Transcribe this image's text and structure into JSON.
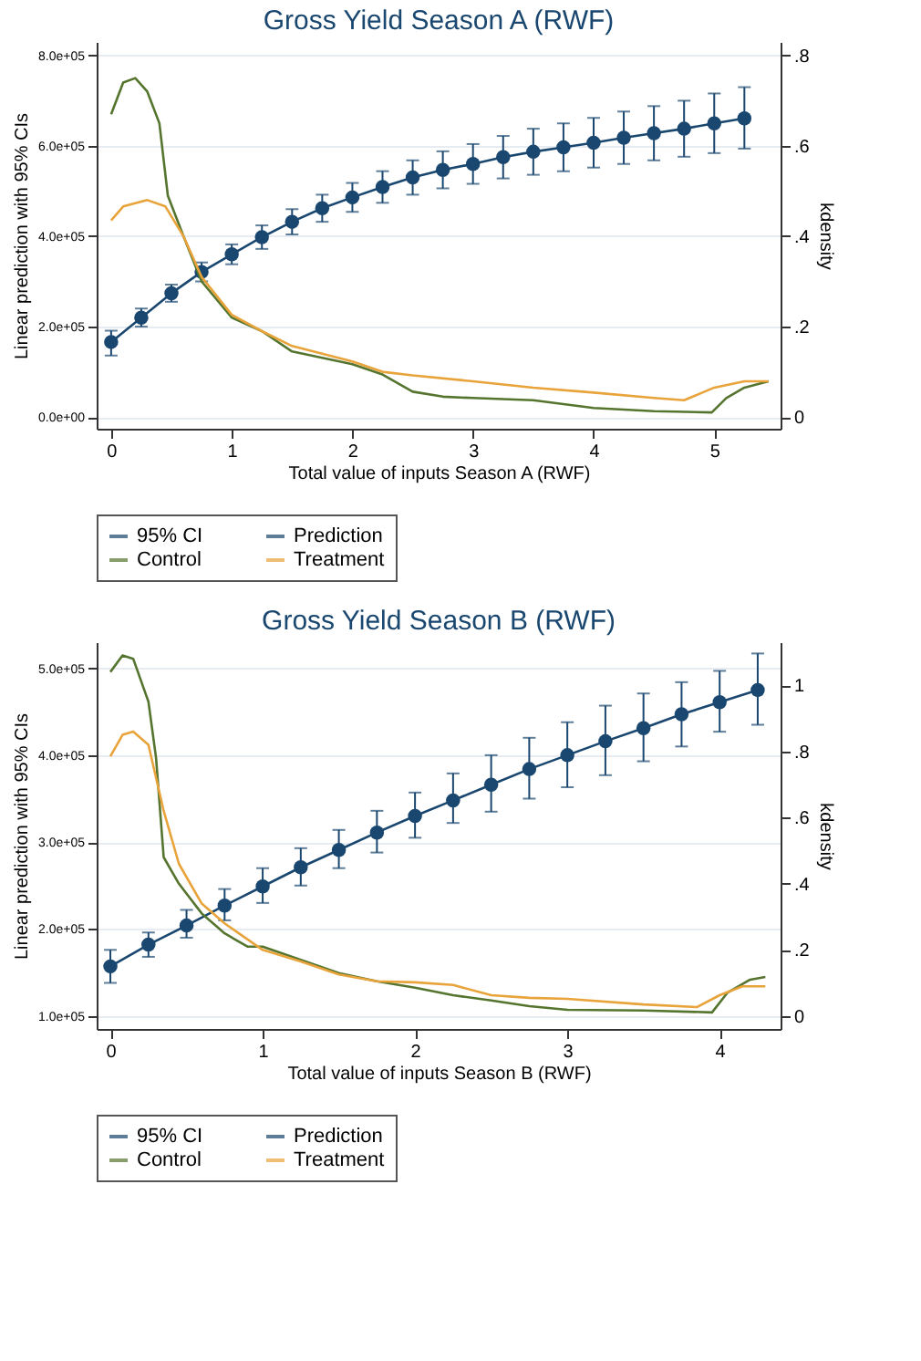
{
  "chart_data": [
    {
      "type": "line",
      "title": "Gross Yield Season A (RWF)",
      "xlabel": "Total value of inputs Season A (RWF)",
      "ylabel": "Linear prediction with 95% CIs",
      "y2label": "kdensity",
      "annotations": [
        "95% CI"
      ],
      "grid": "y",
      "legend": "bottom",
      "xlim": [
        -0.12,
        5.55
      ],
      "xticks": [
        0,
        1,
        2,
        3,
        4,
        5
      ],
      "ylim": [
        -26000,
        830000
      ],
      "yticks": [
        {
          "value": 0,
          "label": "0.0e+00"
        },
        {
          "value": 200000,
          "label": "2.0e+05"
        },
        {
          "value": 400000,
          "label": "4.0e+05"
        },
        {
          "value": 600000,
          "label": "6.0e+05"
        },
        {
          "value": 800000,
          "label": "8.0e+05"
        }
      ],
      "y2lim": [
        -0.026,
        0.83
      ],
      "y2ticks": [
        {
          "value": 0,
          "label": "0"
        },
        {
          "value": 0.2,
          "label": ".2"
        },
        {
          "value": 0.4,
          "label": ".4"
        },
        {
          "value": 0.6,
          "label": ".6"
        },
        {
          "value": 0.8,
          "label": ".8"
        }
      ],
      "series": [
        {
          "name": "Prediction",
          "color": "#1a476f",
          "marker": "circle",
          "line_style": "solid",
          "x": [
            0,
            0.25,
            0.5,
            0.75,
            1,
            1.25,
            1.5,
            1.75,
            2,
            2.25,
            2.5,
            2.75,
            3,
            3.25,
            3.5,
            3.75,
            4,
            4.25,
            4.5,
            4.75,
            5,
            5.25
          ],
          "values": [
            166000,
            220000,
            274000,
            321000,
            360000,
            398000,
            432000,
            462000,
            486000,
            509000,
            530000,
            547000,
            560000,
            575000,
            587000,
            597000,
            607000,
            618000,
            628000,
            638000,
            650000,
            661000
          ],
          "errors": [
            [
              136000,
              191000
            ],
            [
              200000,
              240000
            ],
            [
              255000,
              293000
            ],
            [
              300000,
              342000
            ],
            [
              338000,
              382000
            ],
            [
              372000,
              424000
            ],
            [
              404000,
              460000
            ],
            [
              432000,
              492000
            ],
            [
              454000,
              518000
            ],
            [
              474000,
              544000
            ],
            [
              492000,
              568000
            ],
            [
              506000,
              588000
            ],
            [
              516000,
              604000
            ],
            [
              528000,
              622000
            ],
            [
              536000,
              638000
            ],
            [
              544000,
              650000
            ],
            [
              552000,
              662000
            ],
            [
              560000,
              676000
            ],
            [
              568000,
              688000
            ],
            [
              576000,
              700000
            ],
            [
              584000,
              716000
            ],
            [
              594000,
              730000
            ]
          ]
        },
        {
          "name": "Control",
          "color": "#55752f",
          "axis": "y2",
          "line_style": "solid",
          "x": [
            0,
            0.1,
            0.2,
            0.3,
            0.4,
            0.47,
            0.6,
            0.75,
            1,
            1.25,
            1.5,
            2,
            2.25,
            2.5,
            2.75,
            3,
            3.5,
            4,
            4.5,
            4.98,
            5.1,
            5.25,
            5.45
          ],
          "values": [
            0.67,
            0.74,
            0.75,
            0.72,
            0.65,
            0.49,
            0.4,
            0.3,
            0.22,
            0.19,
            0.145,
            0.117,
            0.094,
            0.056,
            0.045,
            0.042,
            0.037,
            0.02,
            0.013,
            0.01,
            0.042,
            0.065,
            0.079
          ]
        },
        {
          "name": "Treatment",
          "color": "#e8a33a",
          "axis": "y2",
          "line_style": "solid",
          "x": [
            0,
            0.1,
            0.3,
            0.45,
            0.6,
            0.75,
            1,
            1.25,
            1.5,
            1.75,
            2,
            2.25,
            2.5,
            3,
            3.5,
            4,
            4.5,
            4.75,
            5,
            5.25,
            5.45
          ],
          "values": [
            0.435,
            0.466,
            0.48,
            0.466,
            0.4,
            0.31,
            0.226,
            0.19,
            0.157,
            0.14,
            0.123,
            0.1,
            0.092,
            0.079,
            0.065,
            0.054,
            0.042,
            0.037,
            0.065,
            0.079,
            0.079
          ]
        }
      ]
    },
    {
      "type": "line",
      "title": "Gross Yield Season B (RWF)",
      "xlabel": "Total value of inputs Season B (RWF)",
      "ylabel": "Linear prediction with 95% CIs",
      "y2label": "kdensity",
      "annotations": [
        "95% CI"
      ],
      "grid": "y",
      "legend": "bottom",
      "xlim": [
        -0.09,
        4.4
      ],
      "xticks": [
        0,
        1,
        2,
        3,
        4
      ],
      "ylim": [
        85000,
        530000
      ],
      "yticks": [
        {
          "value": 100000,
          "label": "1.0e+05"
        },
        {
          "value": 200000,
          "label": "2.0e+05"
        },
        {
          "value": 300000,
          "label": "3.0e+05"
        },
        {
          "value": 400000,
          "label": "4.0e+05"
        },
        {
          "value": 500000,
          "label": "5.0e+05"
        }
      ],
      "y2lim": [
        -0.039,
        1.13
      ],
      "y2ticks": [
        {
          "value": 0,
          "label": "0"
        },
        {
          "value": 0.2,
          "label": ".2"
        },
        {
          "value": 0.4,
          "label": ".4"
        },
        {
          "value": 0.6,
          "label": ".6"
        },
        {
          "value": 0.8,
          "label": ".8"
        },
        {
          "value": 1,
          "label": "1"
        }
      ],
      "series": [
        {
          "name": "Prediction",
          "color": "#1a476f",
          "marker": "circle",
          "line_style": "solid",
          "x": [
            0,
            0.25,
            0.5,
            0.75,
            1,
            1.25,
            1.5,
            1.75,
            2,
            2.25,
            2.5,
            2.75,
            3,
            3.25,
            3.5,
            3.75,
            4,
            4.25
          ],
          "values": [
            157000,
            182000,
            204000,
            227000,
            249000,
            271000,
            291000,
            311000,
            330000,
            348000,
            366000,
            384000,
            400000,
            416000,
            431000,
            447000,
            461000,
            475000
          ],
          "errors": [
            [
              138000,
              176000
            ],
            [
              168000,
              196000
            ],
            [
              190000,
              222000
            ],
            [
              210000,
              246000
            ],
            [
              230000,
              270000
            ],
            [
              250000,
              293000
            ],
            [
              270000,
              314000
            ],
            [
              288000,
              336000
            ],
            [
              305000,
              357000
            ],
            [
              322000,
              379000
            ],
            [
              335000,
              400000
            ],
            [
              350000,
              420000
            ],
            [
              363000,
              438000
            ],
            [
              377000,
              457000
            ],
            [
              393000,
              471000
            ],
            [
              410000,
              484000
            ],
            [
              427000,
              497000
            ],
            [
              435000,
              517000
            ]
          ]
        },
        {
          "name": "Control",
          "color": "#55752f",
          "axis": "y2",
          "line_style": "solid",
          "x": [
            0,
            0.08,
            0.15,
            0.25,
            0.3,
            0.35,
            0.45,
            0.6,
            0.75,
            0.9,
            1,
            1.25,
            1.5,
            1.75,
            2,
            2.25,
            2.5,
            2.75,
            3,
            3.5,
            3.95,
            4.05,
            4.2,
            4.3
          ],
          "values": [
            1.04,
            1.09,
            1.08,
            0.95,
            0.78,
            0.48,
            0.4,
            0.31,
            0.25,
            0.21,
            0.21,
            0.17,
            0.13,
            0.105,
            0.086,
            0.063,
            0.047,
            0.03,
            0.019,
            0.017,
            0.011,
            0.07,
            0.11,
            0.118
          ]
        },
        {
          "name": "Treatment",
          "color": "#e8a33a",
          "axis": "y2",
          "line_style": "solid",
          "x": [
            0,
            0.08,
            0.15,
            0.25,
            0.35,
            0.45,
            0.6,
            0.75,
            1,
            1.25,
            1.5,
            1.75,
            2,
            2.25,
            2.5,
            2.75,
            3,
            3.5,
            3.85,
            4,
            4.15,
            4.3
          ],
          "values": [
            0.785,
            0.85,
            0.86,
            0.82,
            0.62,
            0.46,
            0.34,
            0.28,
            0.2,
            0.165,
            0.126,
            0.105,
            0.102,
            0.094,
            0.063,
            0.055,
            0.052,
            0.035,
            0.027,
            0.063,
            0.09,
            0.09
          ]
        }
      ]
    }
  ]
}
